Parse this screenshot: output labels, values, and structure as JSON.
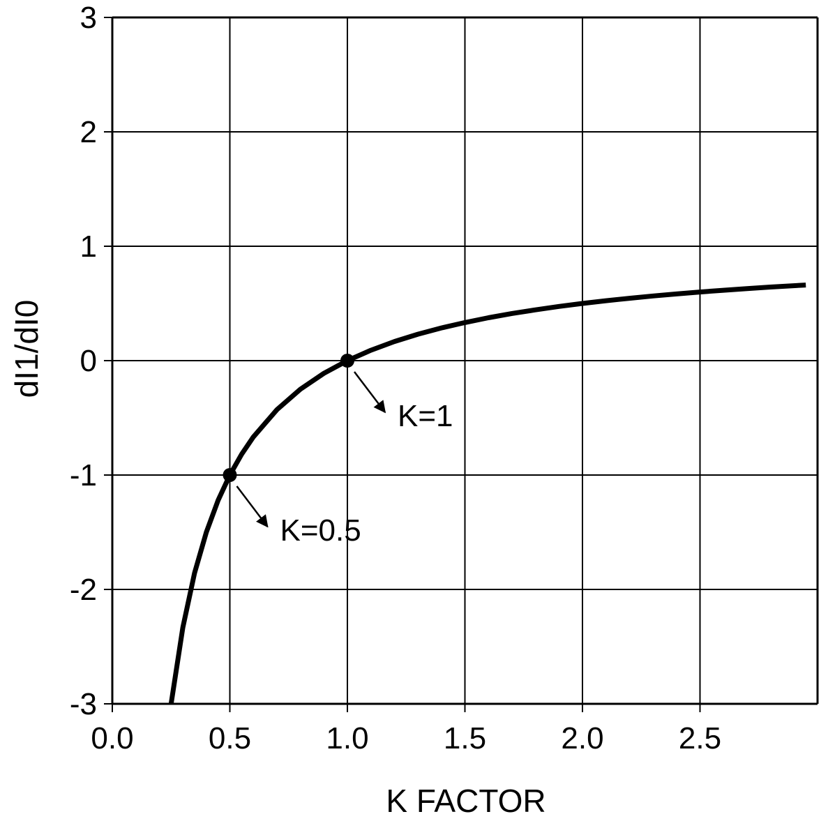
{
  "chart_data": {
    "type": "line",
    "title": "",
    "xlabel": "K FACTOR",
    "ylabel": "dI1/dI0",
    "xlim": [
      0,
      3
    ],
    "ylim": [
      -3,
      3
    ],
    "x_ticks": [
      0,
      0.5,
      1.0,
      1.5,
      2.0,
      2.5
    ],
    "x_tick_labels": [
      "0.0",
      "0.5",
      "1.0",
      "1.5",
      "2.0",
      "2.5"
    ],
    "y_ticks": [
      3,
      2,
      1,
      0,
      -1,
      -2,
      -3
    ],
    "y_tick_labels": [
      "3",
      "2",
      "1",
      "0",
      "-1",
      "-2",
      "-3"
    ],
    "grid": true,
    "legend": "none",
    "colors": {
      "line": "#000000",
      "grid": "#000000",
      "background": "#ffffff"
    },
    "series": [
      {
        "x": [
          0.25,
          0.3,
          0.35,
          0.4,
          0.45,
          0.5,
          0.55,
          0.6,
          0.7,
          0.8,
          0.9,
          1.0,
          1.1,
          1.2,
          1.3,
          1.4,
          1.5,
          1.6,
          1.7,
          1.8,
          1.9,
          2.0,
          2.1,
          2.2,
          2.3,
          2.4,
          2.5,
          2.6,
          2.7,
          2.8,
          2.95
        ],
        "y": [
          -3.0,
          -2.333,
          -1.857,
          -1.5,
          -1.222,
          -1.0,
          -0.818,
          -0.667,
          -0.429,
          -0.25,
          -0.111,
          0.0,
          0.091,
          0.167,
          0.231,
          0.286,
          0.333,
          0.375,
          0.412,
          0.444,
          0.474,
          0.5,
          0.524,
          0.545,
          0.565,
          0.583,
          0.6,
          0.615,
          0.63,
          0.643,
          0.661
        ]
      }
    ],
    "annotations": [
      {
        "text": "K=1",
        "x": 1.0,
        "y": 0.0
      },
      {
        "text": "K=0.5",
        "x": 0.5,
        "y": -1.0
      }
    ]
  }
}
